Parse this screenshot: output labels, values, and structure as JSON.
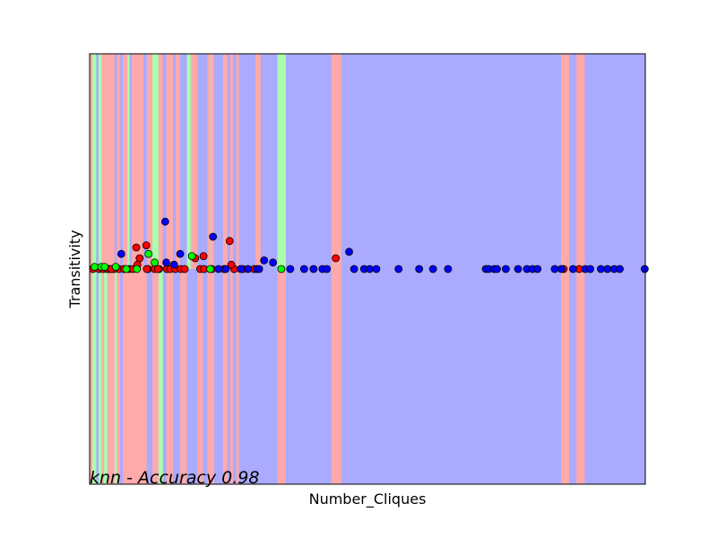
{
  "chart_data": {
    "type": "scatter",
    "title": "",
    "xlabel": "Number_Cliques",
    "ylabel": "Transitivity",
    "annotation": "knn - Accuracy 0.98",
    "xlim": [
      0,
      100
    ],
    "ylim": [
      -1,
      1
    ],
    "x_ticks_shown": false,
    "y_ticks_shown": false,
    "grid": false,
    "legend": "none",
    "colors": {
      "region_red": "#ffaaaa",
      "region_green": "#aaffaa",
      "region_blue": "#aaaaff",
      "point_red": "#ff0000",
      "point_green": "#00ff00",
      "point_blue": "#0000ff",
      "point_edge": "#000000"
    },
    "decision_regions": {
      "default_class": "blue",
      "upper_bands": [
        {
          "x0": 0.0,
          "x1": 0.5,
          "cls": "red"
        },
        {
          "x0": 0.5,
          "x1": 1.2,
          "cls": "green"
        },
        {
          "x0": 1.2,
          "x1": 1.6,
          "cls": "blue"
        },
        {
          "x0": 1.6,
          "x1": 2.2,
          "cls": "green"
        },
        {
          "x0": 2.2,
          "x1": 4.5,
          "cls": "red"
        },
        {
          "x0": 4.5,
          "x1": 4.9,
          "cls": "blue"
        },
        {
          "x0": 4.9,
          "x1": 5.5,
          "cls": "red"
        },
        {
          "x0": 5.5,
          "x1": 6.0,
          "cls": "blue"
        },
        {
          "x0": 6.0,
          "x1": 6.8,
          "cls": "red"
        },
        {
          "x0": 6.8,
          "x1": 7.2,
          "cls": "green"
        },
        {
          "x0": 7.2,
          "x1": 7.6,
          "cls": "blue"
        },
        {
          "x0": 7.6,
          "x1": 9.7,
          "cls": "red"
        },
        {
          "x0": 9.7,
          "x1": 10.3,
          "cls": "blue"
        },
        {
          "x0": 10.3,
          "x1": 11.3,
          "cls": "red"
        },
        {
          "x0": 11.3,
          "x1": 12.4,
          "cls": "green"
        },
        {
          "x0": 12.4,
          "x1": 13.2,
          "cls": "red"
        },
        {
          "x0": 13.2,
          "x1": 13.8,
          "cls": "blue"
        },
        {
          "x0": 13.8,
          "x1": 15.0,
          "cls": "red"
        },
        {
          "x0": 15.0,
          "x1": 15.5,
          "cls": "blue"
        },
        {
          "x0": 15.5,
          "x1": 16.3,
          "cls": "red"
        },
        {
          "x0": 16.3,
          "x1": 17.5,
          "cls": "blue"
        },
        {
          "x0": 17.5,
          "x1": 18.2,
          "cls": "green"
        },
        {
          "x0": 18.2,
          "x1": 19.4,
          "cls": "red"
        },
        {
          "x0": 19.4,
          "x1": 21.2,
          "cls": "blue"
        },
        {
          "x0": 21.2,
          "x1": 21.8,
          "cls": "red"
        },
        {
          "x0": 21.8,
          "x1": 21.9,
          "cls": "green"
        },
        {
          "x0": 21.9,
          "x1": 22.4,
          "cls": "red"
        },
        {
          "x0": 22.4,
          "x1": 24.0,
          "cls": "blue"
        },
        {
          "x0": 24.0,
          "x1": 24.8,
          "cls": "red"
        },
        {
          "x0": 24.8,
          "x1": 25.3,
          "cls": "blue"
        },
        {
          "x0": 25.3,
          "x1": 25.8,
          "cls": "red"
        },
        {
          "x0": 25.8,
          "x1": 26.4,
          "cls": "blue"
        },
        {
          "x0": 26.4,
          "x1": 26.9,
          "cls": "red"
        },
        {
          "x0": 26.9,
          "x1": 29.8,
          "cls": "blue"
        },
        {
          "x0": 29.8,
          "x1": 30.8,
          "cls": "red"
        },
        {
          "x0": 30.8,
          "x1": 33.8,
          "cls": "blue"
        },
        {
          "x0": 33.8,
          "x1": 35.3,
          "cls": "green"
        },
        {
          "x0": 43.5,
          "x1": 45.3,
          "cls": "red"
        },
        {
          "x0": 84.8,
          "x1": 86.3,
          "cls": "red"
        },
        {
          "x0": 87.6,
          "x1": 89.1,
          "cls": "red"
        }
      ],
      "lower_bands": [
        {
          "x0": 0.0,
          "x1": 0.5,
          "cls": "red"
        },
        {
          "x0": 0.5,
          "x1": 1.2,
          "cls": "green"
        },
        {
          "x0": 1.2,
          "x1": 1.6,
          "cls": "blue"
        },
        {
          "x0": 1.6,
          "x1": 2.2,
          "cls": "green"
        },
        {
          "x0": 2.2,
          "x1": 2.6,
          "cls": "red"
        },
        {
          "x0": 2.6,
          "x1": 3.2,
          "cls": "green"
        },
        {
          "x0": 3.2,
          "x1": 4.5,
          "cls": "red"
        },
        {
          "x0": 4.5,
          "x1": 4.9,
          "cls": "green"
        },
        {
          "x0": 4.9,
          "x1": 5.5,
          "cls": "red"
        },
        {
          "x0": 5.5,
          "x1": 6.0,
          "cls": "blue"
        },
        {
          "x0": 6.0,
          "x1": 10.3,
          "cls": "red"
        },
        {
          "x0": 10.3,
          "x1": 11.3,
          "cls": "blue"
        },
        {
          "x0": 11.3,
          "x1": 12.4,
          "cls": "red"
        },
        {
          "x0": 12.4,
          "x1": 13.2,
          "cls": "green"
        },
        {
          "x0": 13.2,
          "x1": 13.8,
          "cls": "blue"
        },
        {
          "x0": 13.8,
          "x1": 15.0,
          "cls": "red"
        },
        {
          "x0": 15.0,
          "x1": 16.3,
          "cls": "blue"
        },
        {
          "x0": 16.3,
          "x1": 17.5,
          "cls": "red"
        },
        {
          "x0": 17.5,
          "x1": 19.4,
          "cls": "blue"
        },
        {
          "x0": 19.4,
          "x1": 20.4,
          "cls": "red"
        },
        {
          "x0": 20.4,
          "x1": 21.2,
          "cls": "blue"
        },
        {
          "x0": 21.2,
          "x1": 22.4,
          "cls": "red"
        },
        {
          "x0": 22.4,
          "x1": 24.0,
          "cls": "blue"
        },
        {
          "x0": 24.0,
          "x1": 24.8,
          "cls": "red"
        },
        {
          "x0": 24.8,
          "x1": 25.3,
          "cls": "blue"
        },
        {
          "x0": 25.3,
          "x1": 25.8,
          "cls": "red"
        },
        {
          "x0": 25.8,
          "x1": 26.4,
          "cls": "blue"
        },
        {
          "x0": 26.4,
          "x1": 26.9,
          "cls": "red"
        },
        {
          "x0": 26.9,
          "x1": 33.8,
          "cls": "blue"
        },
        {
          "x0": 33.8,
          "x1": 35.3,
          "cls": "red"
        },
        {
          "x0": 43.5,
          "x1": 45.3,
          "cls": "red"
        },
        {
          "x0": 84.8,
          "x1": 86.3,
          "cls": "red"
        },
        {
          "x0": 87.6,
          "x1": 89.1,
          "cls": "red"
        }
      ]
    },
    "series": [
      {
        "cls": "red",
        "points": [
          [
            0.6,
            0.0
          ],
          [
            1.7,
            0.0
          ],
          [
            2.4,
            0.0
          ],
          [
            3.1,
            0.0
          ],
          [
            3.6,
            0.0
          ],
          [
            4.4,
            0.0
          ],
          [
            5.3,
            0.0
          ],
          [
            6.2,
            0.0
          ],
          [
            7.1,
            0.0
          ],
          [
            7.8,
            0.0
          ],
          [
            8.6,
            0.02
          ],
          [
            9.0,
            0.05
          ],
          [
            10.5,
            0.0
          ],
          [
            11.7,
            0.0
          ],
          [
            12.5,
            0.0
          ],
          [
            13.9,
            0.0
          ],
          [
            14.5,
            0.0
          ],
          [
            15.4,
            0.0
          ],
          [
            16.4,
            0.0
          ],
          [
            17.1,
            0.0
          ],
          [
            19.0,
            0.05
          ],
          [
            19.9,
            0.0
          ],
          [
            20.6,
            0.0
          ],
          [
            22.0,
            0.0
          ],
          [
            24.2,
            0.0
          ],
          [
            26.0,
            0.0
          ],
          [
            27.6,
            0.0
          ],
          [
            29.6,
            0.0
          ],
          [
            3.9,
            0.0
          ],
          [
            8.4,
            0.1
          ],
          [
            10.3,
            0.0
          ],
          [
            12.3,
            0.0
          ],
          [
            20.5,
            0.06
          ],
          [
            25.5,
            0.02
          ],
          [
            25.2,
            0.13
          ],
          [
            10.2,
            0.11
          ],
          [
            44.3,
            0.05
          ],
          [
            85.3,
            0.0
          ],
          [
            88.1,
            0.0
          ]
        ]
      },
      {
        "cls": "green",
        "points": [
          [
            0.9,
            0.01
          ],
          [
            2.1,
            0.01
          ],
          [
            2.7,
            0.01
          ],
          [
            4.7,
            0.01
          ],
          [
            6.6,
            0.0
          ],
          [
            8.5,
            0.0
          ],
          [
            10.6,
            0.07
          ],
          [
            11.7,
            0.03
          ],
          [
            18.4,
            0.06
          ],
          [
            21.7,
            0.0
          ],
          [
            34.5,
            0.0
          ]
        ]
      },
      {
        "cls": "blue",
        "points": [
          [
            5.7,
            0.07
          ],
          [
            13.6,
            0.22
          ],
          [
            16.3,
            0.07
          ],
          [
            22.2,
            0.15
          ],
          [
            13.8,
            0.03
          ],
          [
            15.2,
            0.02
          ],
          [
            23.2,
            0.0
          ],
          [
            24.5,
            0.0
          ],
          [
            27.2,
            0.0
          ],
          [
            28.5,
            0.0
          ],
          [
            30.1,
            0.0
          ],
          [
            30.5,
            0.0
          ],
          [
            31.4,
            0.04
          ],
          [
            33.0,
            0.03
          ],
          [
            36.1,
            0.0
          ],
          [
            38.6,
            0.0
          ],
          [
            40.3,
            0.0
          ],
          [
            41.9,
            0.0
          ],
          [
            42.7,
            0.0
          ],
          [
            46.7,
            0.08
          ],
          [
            47.6,
            0.0
          ],
          [
            49.4,
            0.0
          ],
          [
            50.4,
            0.0
          ],
          [
            51.6,
            0.0
          ],
          [
            55.6,
            0.0
          ],
          [
            59.3,
            0.0
          ],
          [
            61.8,
            0.0
          ],
          [
            64.5,
            0.0
          ],
          [
            71.3,
            0.0
          ],
          [
            71.8,
            0.0
          ],
          [
            72.8,
            0.0
          ],
          [
            73.3,
            0.0
          ],
          [
            74.9,
            0.0
          ],
          [
            77.1,
            0.0
          ],
          [
            78.7,
            0.0
          ],
          [
            79.7,
            0.0
          ],
          [
            80.6,
            0.0
          ],
          [
            83.7,
            0.0
          ],
          [
            84.9,
            0.0
          ],
          [
            87.0,
            0.0
          ],
          [
            89.2,
            0.0
          ],
          [
            90.1,
            0.0
          ],
          [
            92.0,
            0.0
          ],
          [
            93.2,
            0.0
          ],
          [
            94.4,
            0.0
          ],
          [
            95.4,
            0.0
          ],
          [
            99.9,
            0.0
          ]
        ]
      }
    ]
  }
}
